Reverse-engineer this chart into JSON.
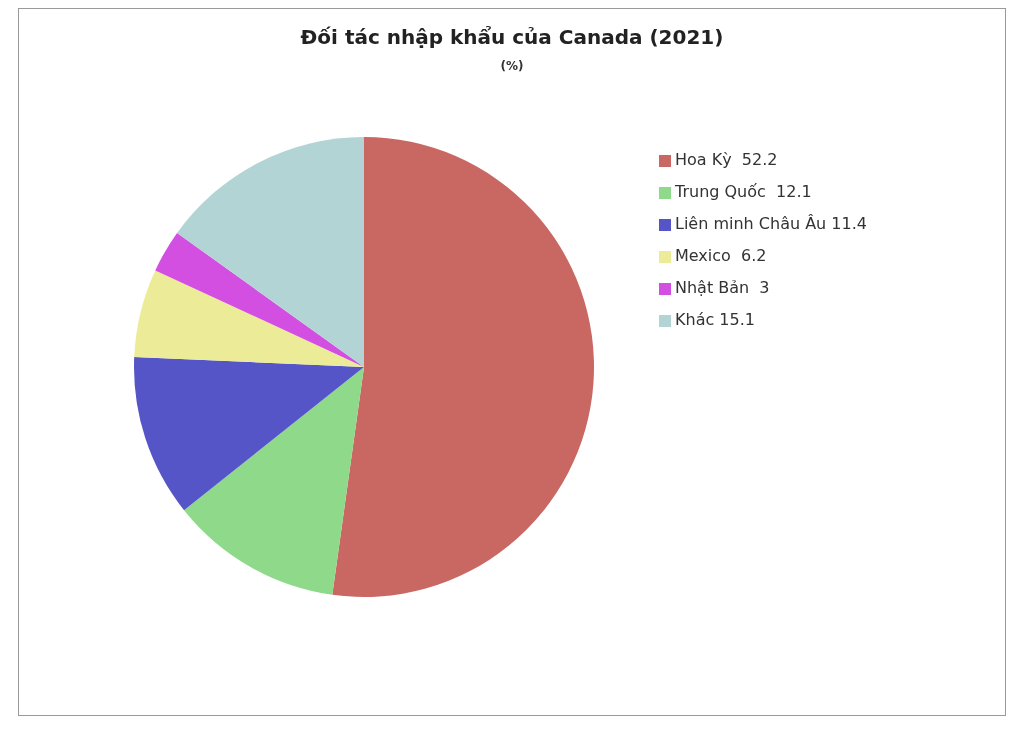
{
  "chart_data": {
    "type": "pie",
    "title": "Đối tác nhập khẩu của Canada (2021)",
    "subtitle": "(%)",
    "categories": [
      "Hoa Kỳ  52.2",
      "Trung Quốc  12.1",
      "Liên minh Châu Âu 11.4",
      "Mexico  6.2",
      "Nhật Bản  3",
      "Khác 15.1"
    ],
    "values": [
      52.2,
      12.1,
      11.4,
      6.2,
      3,
      15.1
    ],
    "colors": [
      "#c96763",
      "#8fd98a",
      "#5555c8",
      "#ecec98",
      "#d24fe2",
      "#b2d4d4"
    ],
    "legend": "right"
  }
}
